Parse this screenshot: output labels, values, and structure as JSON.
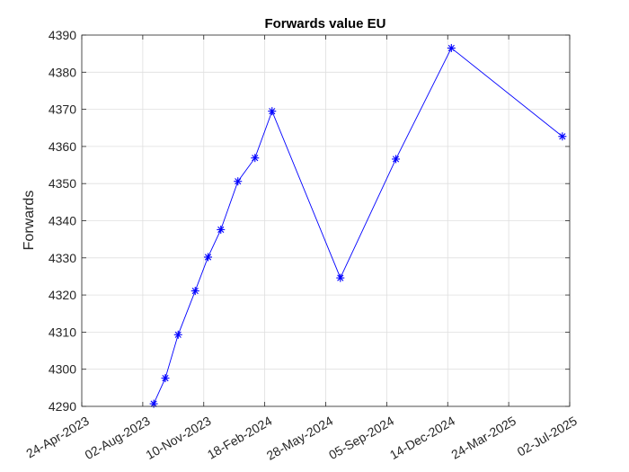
{
  "chart_data": {
    "type": "line",
    "title": "Forwards value EU",
    "xlabel": "",
    "ylabel": "Forwards",
    "x_ticks": [
      "24-Apr-2023",
      "02-Aug-2023",
      "10-Nov-2023",
      "18-Feb-2024",
      "28-May-2024",
      "05-Sep-2024",
      "14-Dec-2024",
      "24-Mar-2025",
      "02-Jul-2025"
    ],
    "xlim": [
      "2023-04-24",
      "2025-07-02"
    ],
    "yticks": [
      4290,
      4300,
      4310,
      4320,
      4330,
      4340,
      4350,
      4360,
      4370,
      4380,
      4390
    ],
    "ylim": [
      4290,
      4390
    ],
    "grid": true,
    "series": [
      {
        "color": "#0000ff",
        "marker": "asterisk",
        "x": [
          "2023-08-20",
          "2023-09-08",
          "2023-09-29",
          "2023-10-27",
          "2023-11-17",
          "2023-12-08",
          "2024-01-05",
          "2024-02-02",
          "2024-03-01",
          "2024-06-21",
          "2024-09-20",
          "2024-12-20",
          "2025-06-20"
        ],
        "values": [
          4290.7,
          4297.6,
          4309.3,
          4321.1,
          4330.2,
          4337.6,
          4350.6,
          4356.9,
          4369.5,
          4324.6,
          4356.6,
          4386.5,
          4362.7
        ]
      }
    ]
  }
}
